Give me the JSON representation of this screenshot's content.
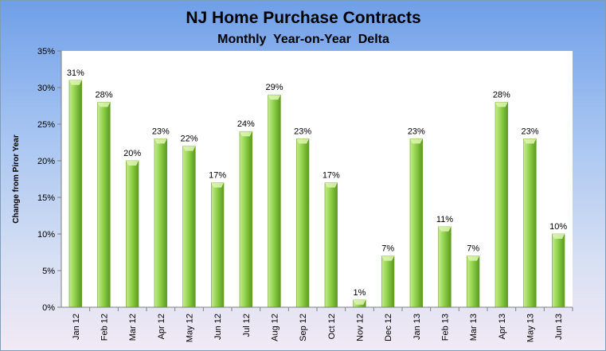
{
  "chart_data": {
    "type": "bar",
    "title": "NJ Home Purchase Contracts",
    "subtitle": "Monthly  Year-on-Year  Delta",
    "ylabel": "Change from Piror Year",
    "xlabel": "",
    "categories": [
      "Jan 12",
      "Feb 12",
      "Mar 12",
      "Apr 12",
      "May 12",
      "Jun 12",
      "Jul 12",
      "Aug 12",
      "Sep 12",
      "Oct 12",
      "Nov 12",
      "Dec 12",
      "Jan 13",
      "Feb 13",
      "Mar 13",
      "Apr 13",
      "May 13",
      "Jun 13"
    ],
    "values": [
      31,
      28,
      20,
      23,
      22,
      17,
      24,
      29,
      23,
      17,
      1,
      7,
      23,
      11,
      7,
      28,
      23,
      10
    ],
    "data_labels": [
      "31%",
      "28%",
      "20%",
      "23%",
      "22%",
      "17%",
      "24%",
      "29%",
      "23%",
      "17%",
      "1%",
      "7%",
      "23%",
      "11%",
      "7%",
      "28%",
      "23%",
      "10%"
    ],
    "yticks": [
      0,
      5,
      10,
      15,
      20,
      25,
      30,
      35
    ],
    "ytick_labels": [
      "0%",
      "5%",
      "10%",
      "15%",
      "20%",
      "25%",
      "30%",
      "35%"
    ],
    "ylim": [
      0,
      35
    ],
    "grid": false,
    "legend": "none",
    "colors": {
      "bar_light": "#c6ec8e",
      "bar_mid": "#8fd14a",
      "bar_dark": "#5a9a1e",
      "plot_background": "#ffffff"
    }
  }
}
